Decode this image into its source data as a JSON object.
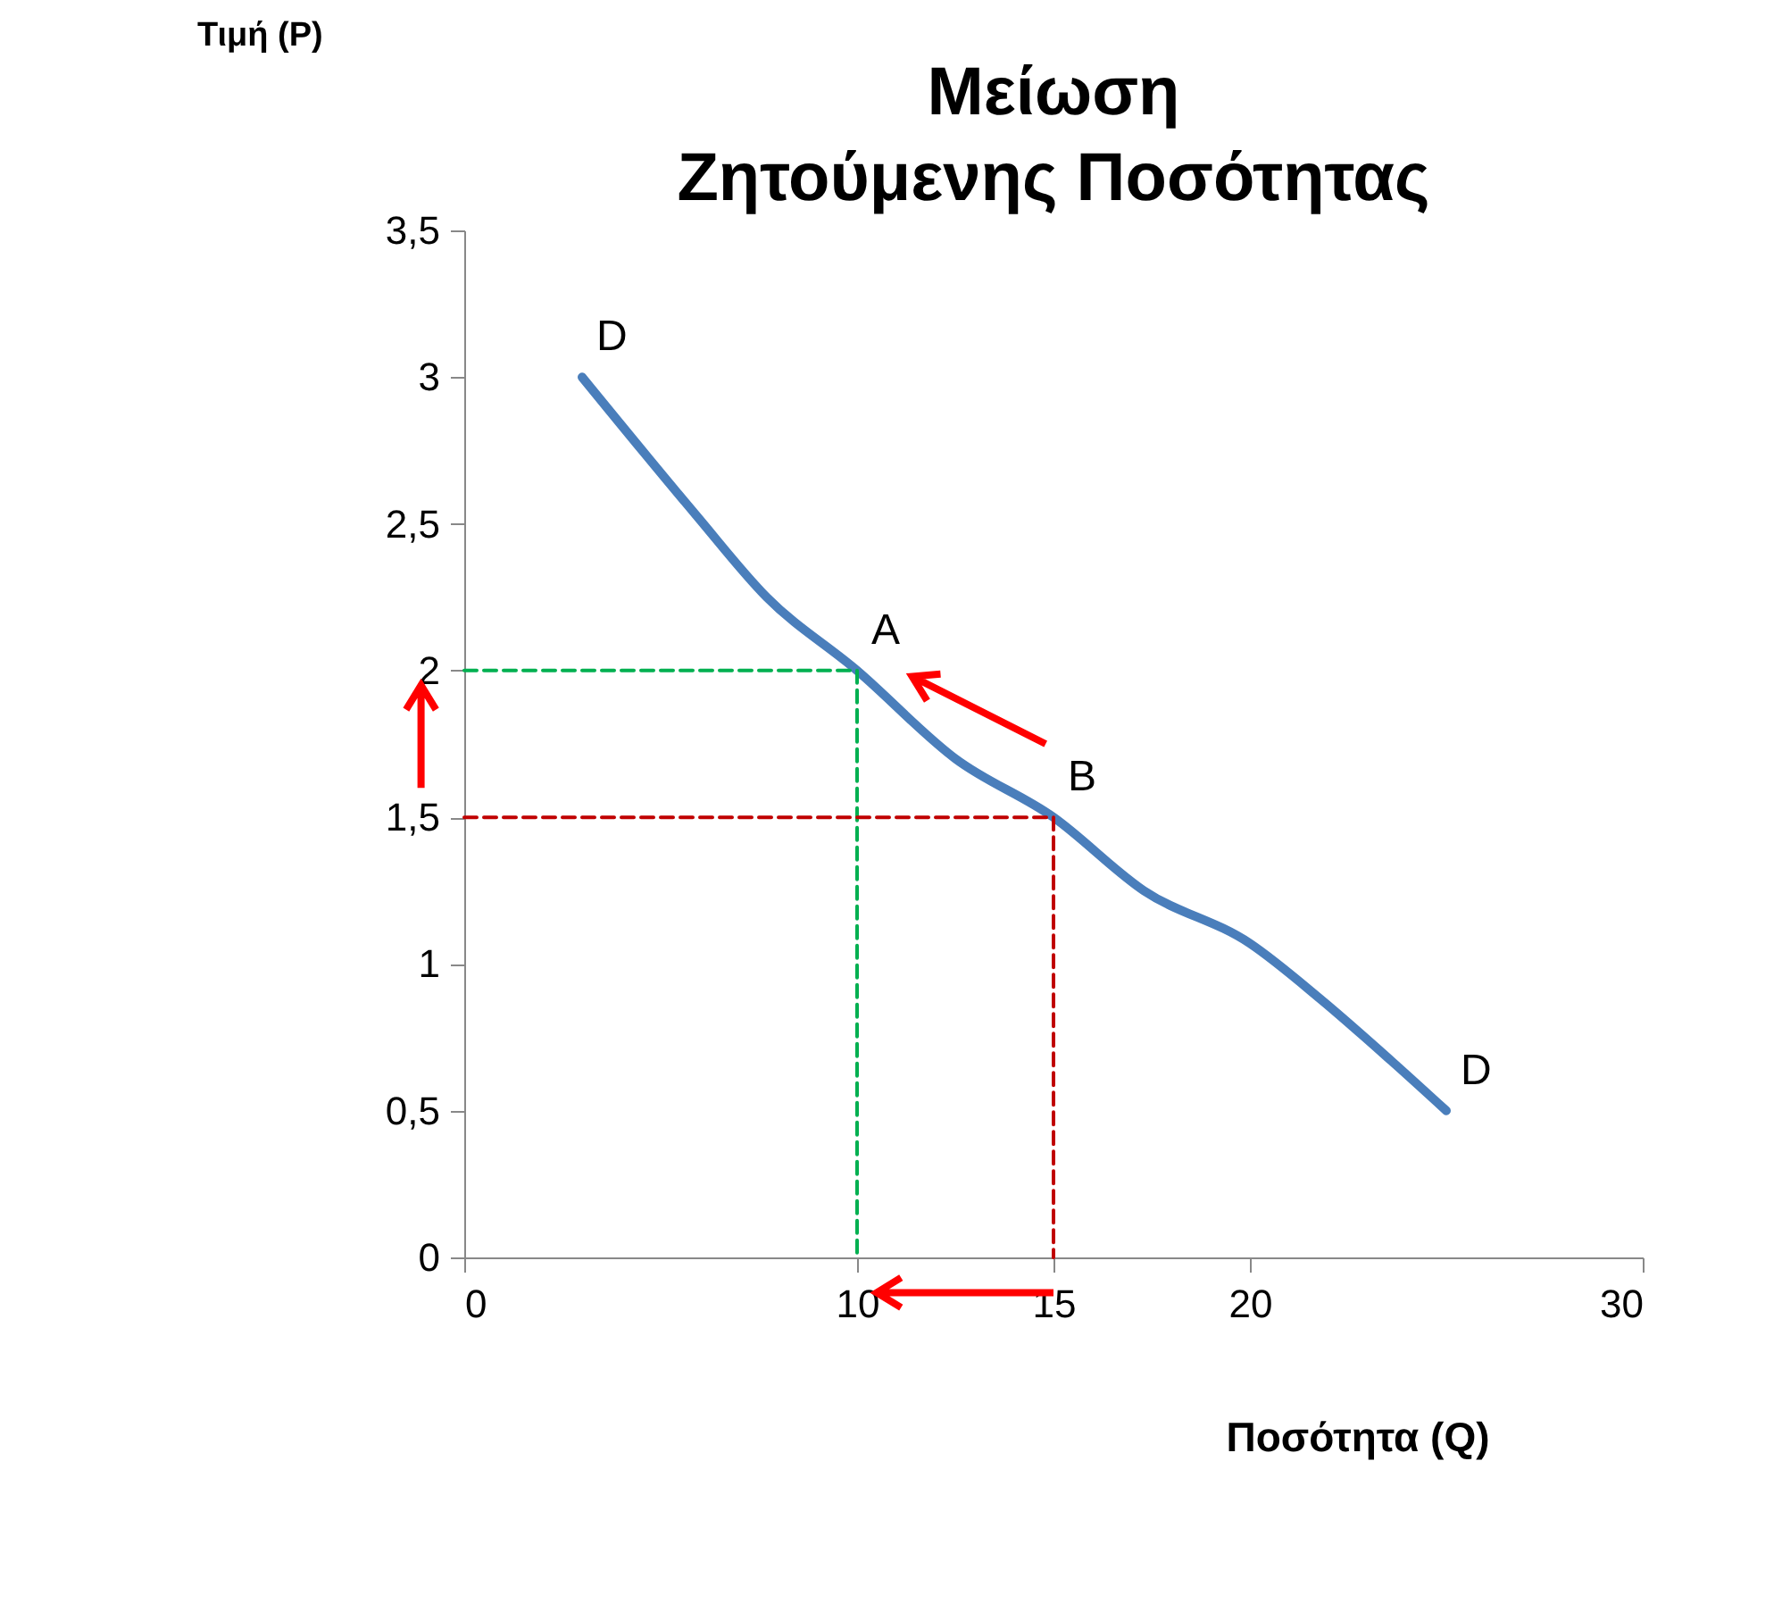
{
  "chart_data": {
    "type": "line",
    "title": "Μείωση\nΖητούμενης Ποσότητας",
    "xlabel": "Ποσότητα (Q)",
    "ylabel": "Τιμή (P)",
    "xlim": [
      0,
      30
    ],
    "xticks": [
      0,
      10,
      15,
      20,
      30
    ],
    "ylim": [
      0,
      3.5
    ],
    "yticks": [
      {
        "value": 0,
        "label": "0"
      },
      {
        "value": 0.5,
        "label": "0,5"
      },
      {
        "value": 1,
        "label": "1"
      },
      {
        "value": 1.5,
        "label": "1,5"
      },
      {
        "value": 2,
        "label": "2"
      },
      {
        "value": 2.5,
        "label": "2,5"
      },
      {
        "value": 3,
        "label": "3"
      },
      {
        "value": 3.5,
        "label": "3,5"
      }
    ],
    "grid": false,
    "marker": "none",
    "series": [
      {
        "color": "#4a7ebb",
        "line_style": "solid",
        "x": [
          3,
          5.9,
          7.7,
          10,
          12.5,
          15,
          17.3,
          20,
          21.8,
          23.6,
          25
        ],
        "values": [
          3,
          2.53,
          2.25,
          2,
          1.7,
          1.5,
          1.25,
          1.07,
          0.88,
          0.67,
          0.5
        ]
      },
      {
        "color": "#00b050",
        "line_style": "dashed",
        "x": [
          0,
          10,
          10
        ],
        "values": [
          2,
          2,
          0
        ]
      },
      {
        "color": "#c00000",
        "line_style": "dashed",
        "x": [
          0,
          15,
          15
        ],
        "values": [
          1.5,
          1.5,
          0
        ]
      }
    ],
    "annotations": [
      {
        "text": "D",
        "x": 3,
        "y": 3
      },
      {
        "text": "A",
        "x": 10,
        "y": 2
      },
      {
        "text": "B",
        "x": 15,
        "y": 1.5
      },
      {
        "text": "D",
        "x": 25,
        "y": 0.5
      }
    ]
  }
}
